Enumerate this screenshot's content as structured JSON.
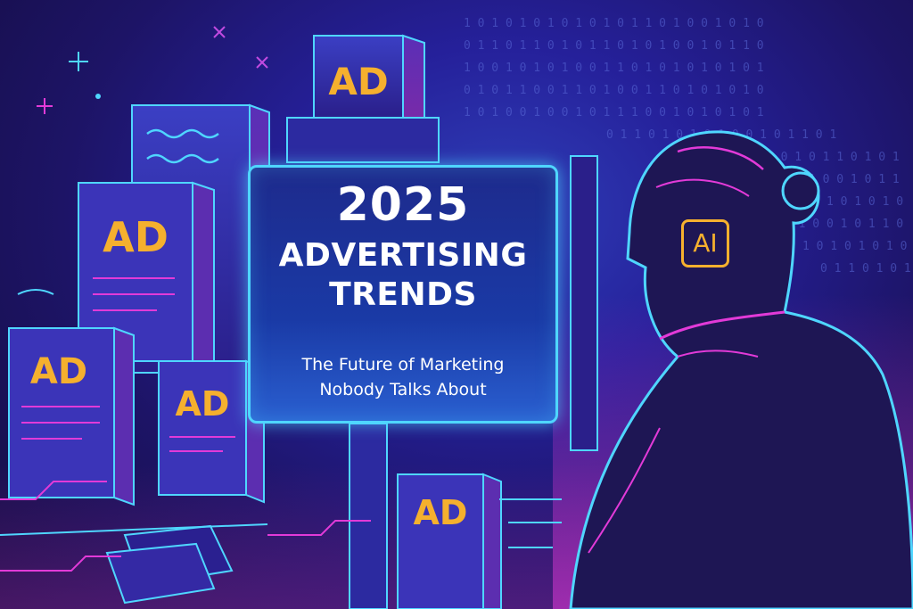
{
  "headline": {
    "year": "2025",
    "line1": "ADVERTISING",
    "line2": "TRENDS",
    "subtitle_line1": "The Future of Marketing",
    "subtitle_line2": "Nobody Talks About"
  },
  "ad_tiles": [
    "AD",
    "AD",
    "AD",
    "AD",
    "AD"
  ],
  "ai_chip_label": "AI",
  "colors": {
    "accent_gold": "#f5b02e",
    "neon_cyan": "#4fd6ff",
    "neon_magenta": "#e23ad8",
    "background": "#1d1466"
  },
  "icons": [
    "sparkle-icon",
    "cross-icon",
    "checkmark-icon",
    "circle-icon"
  ]
}
